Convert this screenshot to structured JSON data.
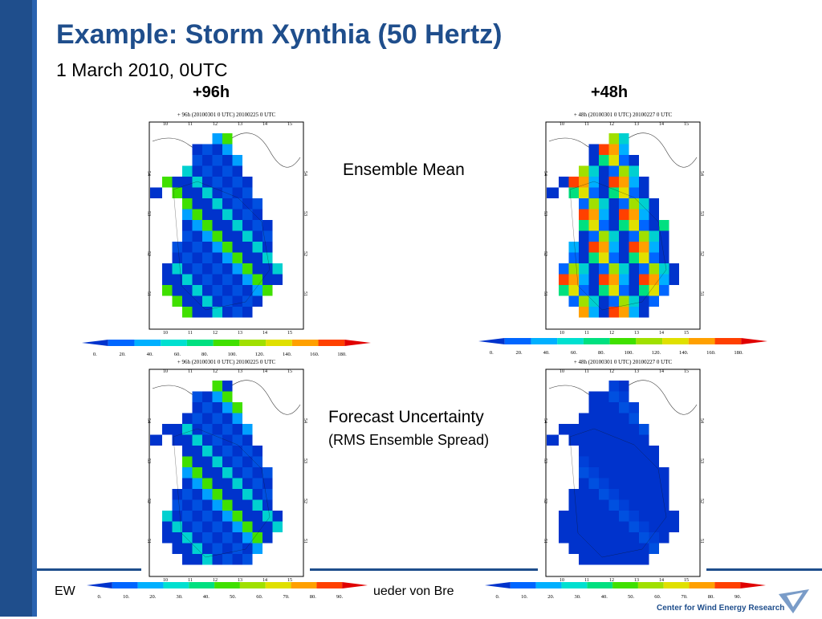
{
  "slide": {
    "title": "Example: Storm Xynthia (50 Hertz)",
    "subtitle": "1 March 2010, 0UTC",
    "columns": [
      "+96h",
      "+48h"
    ],
    "rows": {
      "mean_label": "Ensemble Mean",
      "uncertainty_label": "Forecast Uncertainty",
      "uncertainty_sub": "(RMS Ensemble Spread)"
    },
    "footer": {
      "left_fragment": "EW",
      "middle_fragment": "ueder von Bre",
      "logo_text": "Center for Wind Energy Research"
    }
  },
  "maps": [
    {
      "header": "+ 96h (20100301  0 UTC) 20100225  0 UTC",
      "variant": "mean96"
    },
    {
      "header": "+ 48h (20100301  0 UTC) 20100227  0 UTC",
      "variant": "mean48"
    },
    {
      "header": "+ 96h (20100301  0 UTC) 20100225  0 UTC",
      "variant": "spread96"
    },
    {
      "header": "+ 48h (20100301  0 UTC) 20100227  0 UTC",
      "variant": "spread48"
    }
  ],
  "axes": {
    "lon_ticks": [
      "10",
      "11",
      "12",
      "13",
      "14",
      "15"
    ],
    "lat_ticks": [
      "54",
      "53",
      "52",
      "51"
    ]
  },
  "colorbars": {
    "mean_ticks": [
      "0.",
      "20.",
      "40.",
      "60.",
      "80.",
      "100.",
      "120.",
      "140.",
      "160.",
      "180."
    ],
    "spread_ticks": [
      "0.",
      "10.",
      "20.",
      "30.",
      "40.",
      "50.",
      "60.",
      "70.",
      "80.",
      "90."
    ],
    "colors": [
      "#0033cc",
      "#0066ff",
      "#00b0ff",
      "#00e0d0",
      "#00e080",
      "#40e000",
      "#a0e000",
      "#e0e000",
      "#ffa000",
      "#ff4000",
      "#e00000"
    ]
  }
}
